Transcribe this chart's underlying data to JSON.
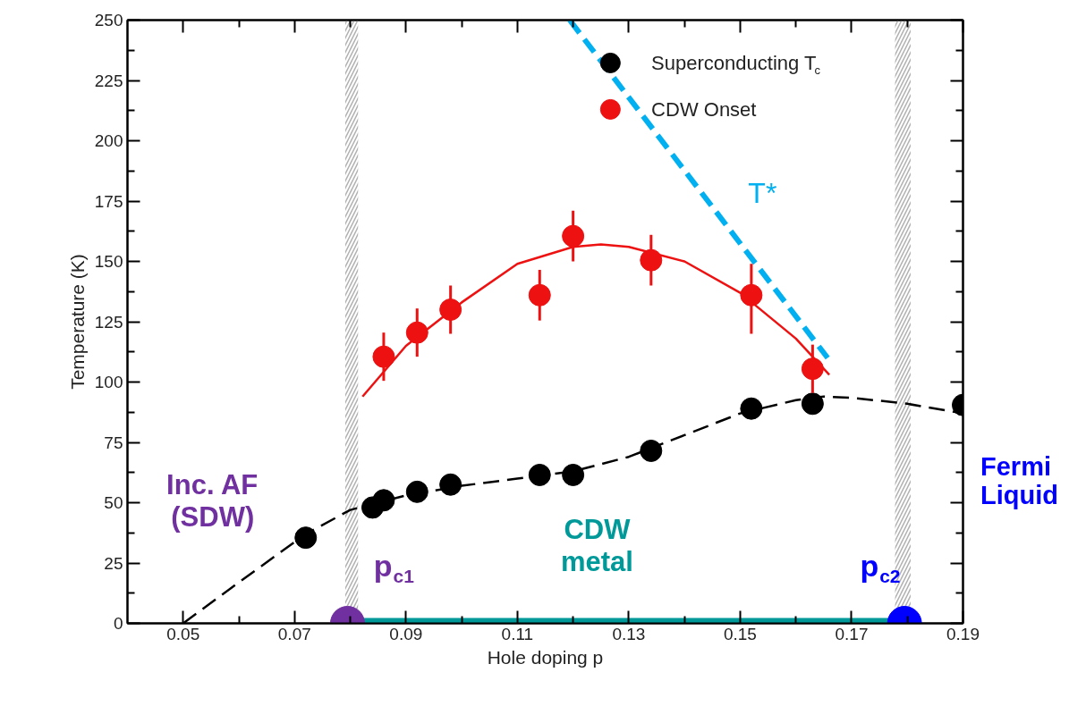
{
  "chart_data": {
    "type": "scatter",
    "xlabel": "Hole doping p",
    "ylabel": "Temperature (K)",
    "xlim": [
      0.04,
      0.19
    ],
    "ylim": [
      0,
      250
    ],
    "xticks": [
      0.05,
      0.07,
      0.09,
      0.11,
      0.13,
      0.15,
      0.17,
      0.19
    ],
    "yticks": [
      0,
      25,
      50,
      75,
      100,
      125,
      150,
      175,
      200,
      225,
      250
    ],
    "grid": false,
    "legend": "top right",
    "series": [
      {
        "name": "Superconducting T$_{c}$",
        "marker": "circle",
        "color": "#000000",
        "x": [
          0.072,
          0.084,
          0.086,
          0.092,
          0.098,
          0.114,
          0.12,
          0.134,
          0.152,
          0.163,
          0.19
        ],
        "values": [
          35.5,
          48,
          51,
          54.5,
          57.5,
          61.5,
          61.5,
          71.5,
          89,
          91,
          90.5
        ]
      },
      {
        "name": "CDW Onset",
        "marker": "circle",
        "color": "#ee1111",
        "x": [
          0.086,
          0.092,
          0.098,
          0.114,
          0.12,
          0.134,
          0.152,
          0.163
        ],
        "values": [
          110.5,
          120.5,
          130,
          136,
          160.5,
          150.5,
          136,
          105.5
        ],
        "errors": [
          10,
          10,
          10,
          10.5,
          10.5,
          10.5,
          [
            120,
            149
          ],
          10
        ]
      },
      {
        "type": "line",
        "line_style": "solid",
        "color": "#ee1111",
        "x": [
          0.0822,
          0.09,
          0.1,
          0.11,
          0.12,
          0.125,
          0.13,
          0.14,
          0.15,
          0.16,
          0.166
        ],
        "values": [
          94,
          115,
          133,
          149,
          156,
          157,
          156,
          150,
          137,
          118,
          103
        ]
      },
      {
        "type": "line",
        "line_style": "dashed",
        "color": "#000000",
        "x": [
          0.05,
          0.06,
          0.072,
          0.08,
          0.09,
          0.1,
          0.11,
          0.12,
          0.13,
          0.14,
          0.15,
          0.16,
          0.165,
          0.17,
          0.18,
          0.19
        ],
        "values": [
          0,
          17,
          37,
          47,
          53,
          57,
          60,
          63,
          69,
          78,
          87,
          92.5,
          94,
          93.5,
          91,
          87
        ]
      },
      {
        "type": "line",
        "line_style": "dashed",
        "color": "#00b0f0",
        "x": [
          0.1194,
          0.1657
        ],
        "values": [
          250,
          110
        ]
      },
      {
        "type": "line",
        "line_style": "solid",
        "color": "#009999",
        "x": [
          0.0795,
          0.1795
        ],
        "values": [
          0,
          0
        ]
      },
      {
        "marker": "circle",
        "colors": [
          "#7030a0",
          "#0000ff"
        ],
        "x": [
          0.0795,
          0.1795
        ],
        "values": [
          0,
          0
        ]
      }
    ],
    "bands": [
      {
        "axis": "x",
        "from": 0.0791,
        "to": 0.0814,
        "color": "#b0b0b0"
      },
      {
        "axis": "x",
        "from": 0.1778,
        "to": 0.1806,
        "color": "#b0b0b0"
      }
    ],
    "annotations": [
      "T*",
      "Inc. AF\n(SDW)",
      "p$_{c1}$",
      "CDW\nmetal",
      "p$_{c2}$",
      "Fermi\nLiquid"
    ]
  }
}
